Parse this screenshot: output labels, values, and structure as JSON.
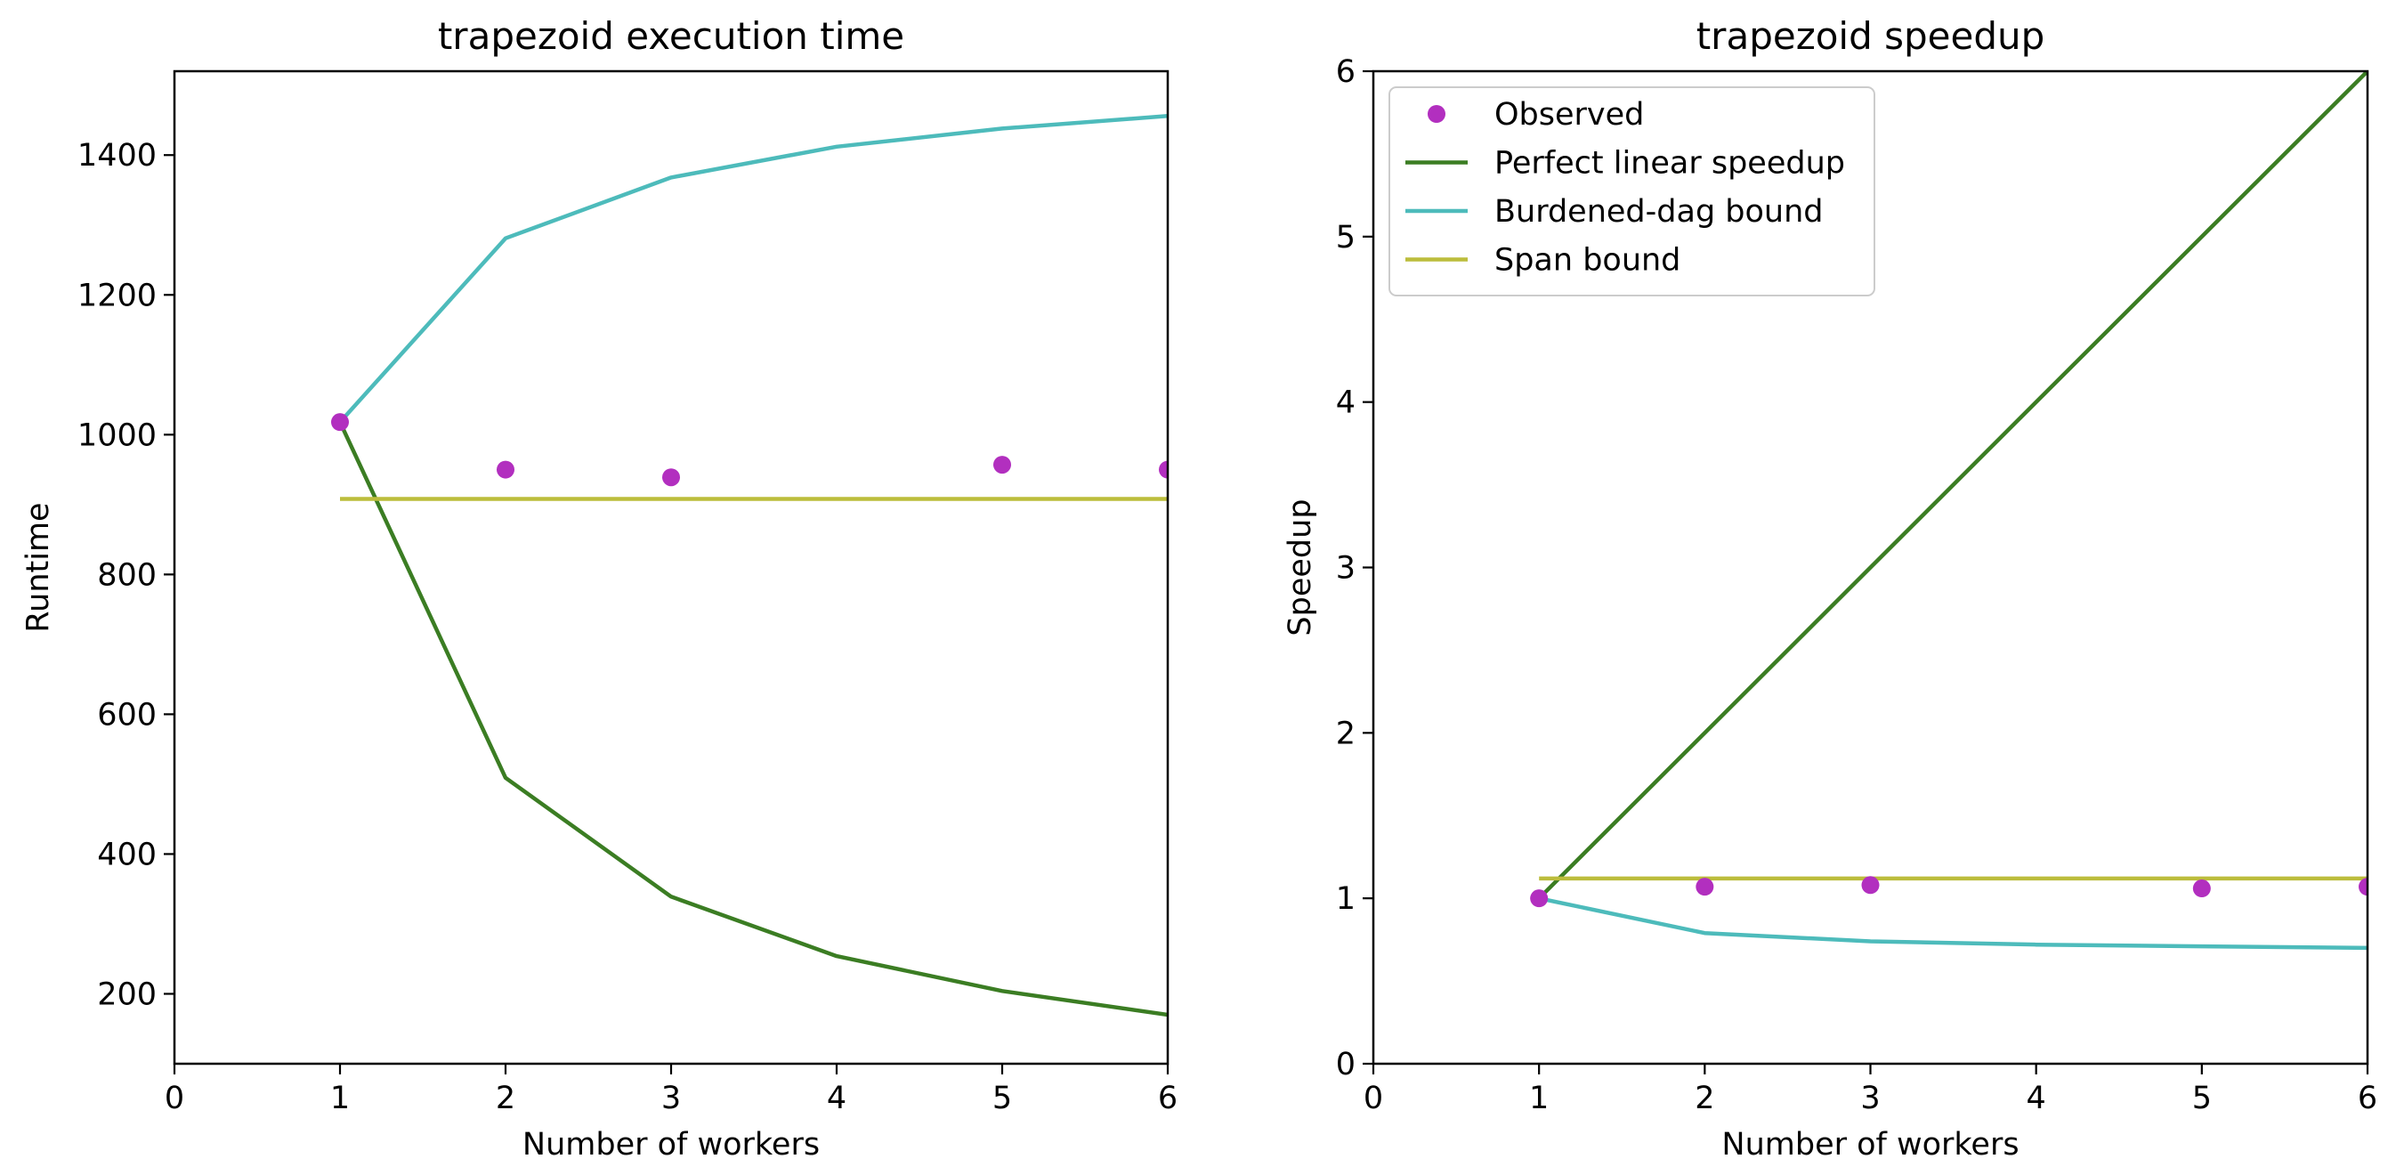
{
  "chart_data": [
    {
      "type": "line",
      "title": "trapezoid execution time",
      "xlabel": "Number of workers",
      "ylabel": "Runtime",
      "xlim": [
        0,
        6
      ],
      "ylim": [
        100,
        1520
      ],
      "xticks": [
        0,
        1,
        2,
        3,
        4,
        5,
        6
      ],
      "yticks": [
        200,
        400,
        600,
        800,
        1000,
        1200,
        1400
      ],
      "grid": false,
      "legend": null,
      "series": [
        {
          "name": "Observed",
          "kind": "scatter",
          "color": "#b22fbf",
          "x": [
            1,
            2,
            3,
            5,
            6
          ],
          "y": [
            1018,
            950,
            939,
            957,
            950
          ]
        },
        {
          "name": "Perfect linear speedup",
          "kind": "line",
          "color": "#3b7d23",
          "x": [
            1,
            2,
            3,
            4,
            5,
            6
          ],
          "y": [
            1018,
            509,
            339,
            254,
            204,
            170
          ]
        },
        {
          "name": "Burdened-dag bound",
          "kind": "line",
          "color": "#4dbbbb",
          "x": [
            1,
            2,
            3,
            4,
            5,
            6
          ],
          "y": [
            1018,
            1281,
            1368,
            1412,
            1438,
            1456
          ]
        },
        {
          "name": "Span bound",
          "kind": "line",
          "color": "#bcbd3c",
          "x": [
            1,
            6
          ],
          "y": [
            908,
            908
          ]
        }
      ]
    },
    {
      "type": "line",
      "title": "trapezoid speedup",
      "xlabel": "Number of workers",
      "ylabel": "Speedup",
      "xlim": [
        0,
        6
      ],
      "ylim": [
        0,
        6
      ],
      "xticks": [
        0,
        1,
        2,
        3,
        4,
        5,
        6
      ],
      "yticks": [
        0,
        1,
        2,
        3,
        4,
        5,
        6
      ],
      "grid": false,
      "legend": "top-left",
      "series": [
        {
          "name": "Observed",
          "kind": "scatter",
          "color": "#b22fbf",
          "x": [
            1,
            2,
            3,
            5,
            6
          ],
          "y": [
            1.0,
            1.07,
            1.08,
            1.06,
            1.07
          ]
        },
        {
          "name": "Perfect linear speedup",
          "kind": "line",
          "color": "#3b7d23",
          "x": [
            1,
            6
          ],
          "y": [
            1,
            6
          ]
        },
        {
          "name": "Burdened-dag bound",
          "kind": "line",
          "color": "#4dbbbb",
          "x": [
            1,
            2,
            3,
            4,
            5,
            6
          ],
          "y": [
            1.0,
            0.79,
            0.74,
            0.72,
            0.71,
            0.7
          ]
        },
        {
          "name": "Span bound",
          "kind": "line",
          "color": "#bcbd3c",
          "x": [
            1,
            6
          ],
          "y": [
            1.12,
            1.12
          ]
        }
      ]
    }
  ]
}
